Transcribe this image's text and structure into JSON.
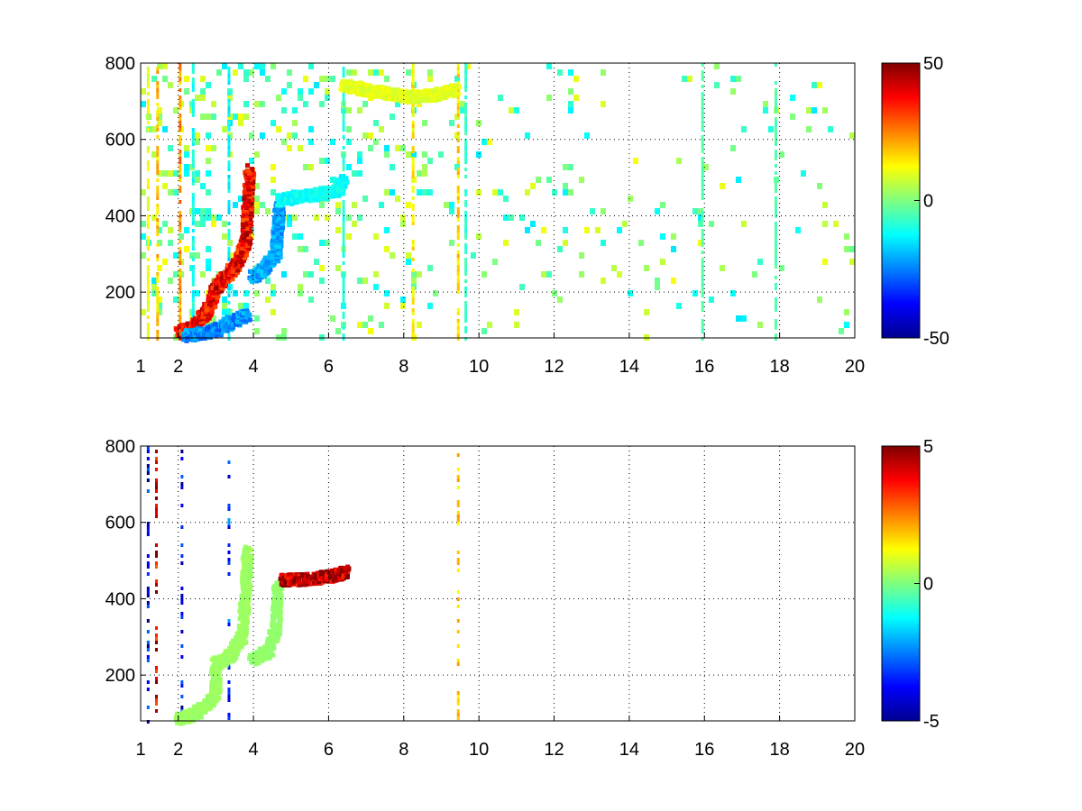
{
  "chart_data": [
    {
      "type": "heatmap",
      "title": "",
      "xlabel": "",
      "ylabel": "",
      "xlim": [
        1,
        20
      ],
      "ylim": [
        80,
        800
      ],
      "xticks": [
        1,
        2,
        4,
        6,
        8,
        10,
        12,
        14,
        16,
        18,
        20
      ],
      "xtick_labels": [
        "1",
        "2",
        "4",
        "6",
        "8",
        "10",
        "12",
        "14",
        "16",
        "18",
        "20"
      ],
      "yticks": [
        200,
        400,
        600,
        800
      ],
      "ytick_labels": [
        "200",
        "400",
        "600",
        "800"
      ],
      "grid": true,
      "colormap": "jet",
      "colorbar": {
        "limits": [
          -50,
          50
        ],
        "ticks": [
          -50,
          0,
          50
        ],
        "tick_labels": [
          "-50",
          "0",
          "50"
        ]
      },
      "features": [
        {
          "kind": "curve",
          "points": [
            [
              2.0,
              90
            ],
            [
              2.4,
              110
            ],
            [
              2.8,
              150
            ],
            [
              3.0,
              210
            ],
            [
              3.3,
              240
            ],
            [
              3.6,
              280
            ],
            [
              3.8,
              330
            ],
            [
              3.85,
              420
            ],
            [
              3.9,
              520
            ]
          ],
          "value": 40
        },
        {
          "kind": "curve",
          "points": [
            [
              2.2,
              85
            ],
            [
              2.6,
              90
            ],
            [
              3.0,
              100
            ],
            [
              3.4,
              120
            ],
            [
              3.8,
              140
            ]
          ],
          "value": -25
        },
        {
          "kind": "curve",
          "points": [
            [
              4.0,
              240
            ],
            [
              4.3,
              260
            ],
            [
              4.6,
              300
            ],
            [
              4.65,
              360
            ],
            [
              4.7,
              430
            ]
          ],
          "value": -22
        },
        {
          "kind": "curve",
          "points": [
            [
              4.7,
              440
            ],
            [
              5.2,
              450
            ],
            [
              5.7,
              455
            ],
            [
              6.2,
              465
            ],
            [
              6.4,
              490
            ]
          ],
          "value": -12
        },
        {
          "kind": "curve",
          "points": [
            [
              6.4,
              740
            ],
            [
              7.0,
              730
            ],
            [
              7.6,
              720
            ],
            [
              8.2,
              710
            ],
            [
              8.8,
              715
            ],
            [
              9.4,
              730
            ]
          ],
          "value": 10
        },
        {
          "kind": "column",
          "x": 1.2,
          "value": 12
        },
        {
          "kind": "column",
          "x": 1.45,
          "value": 20
        },
        {
          "kind": "column",
          "x": 2.05,
          "value": 25
        },
        {
          "kind": "column",
          "x": 2.4,
          "value": -12
        },
        {
          "kind": "column",
          "x": 3.35,
          "value": -15
        },
        {
          "kind": "column",
          "x": 6.4,
          "value": -10
        },
        {
          "kind": "column",
          "x": 8.25,
          "value": 15
        },
        {
          "kind": "column",
          "x": 9.45,
          "value": 18
        },
        {
          "kind": "column",
          "x": 9.65,
          "value": -8
        },
        {
          "kind": "column",
          "x": 15.95,
          "value": -5
        },
        {
          "kind": "column",
          "x": 17.9,
          "value": -5
        }
      ],
      "scatter_density": [
        [
          1,
          0.5
        ],
        [
          4,
          0.45
        ],
        [
          7,
          0.35
        ],
        [
          10,
          0.22
        ],
        [
          14,
          0.14
        ],
        [
          20,
          0.12
        ]
      ],
      "scatter_value_range": [
        -15,
        12
      ]
    },
    {
      "type": "heatmap",
      "title": "",
      "xlabel": "",
      "ylabel": "",
      "xlim": [
        1,
        20
      ],
      "ylim": [
        80,
        800
      ],
      "xticks": [
        1,
        2,
        4,
        6,
        8,
        10,
        12,
        14,
        16,
        18,
        20
      ],
      "xtick_labels": [
        "1",
        "2",
        "4",
        "6",
        "8",
        "10",
        "12",
        "14",
        "16",
        "18",
        "20"
      ],
      "yticks": [
        200,
        400,
        600,
        800
      ],
      "ytick_labels": [
        "200",
        "400",
        "600",
        "800"
      ],
      "grid": true,
      "colormap": "jet",
      "colorbar": {
        "limits": [
          -5,
          5
        ],
        "ticks": [
          -5,
          0,
          5
        ],
        "tick_labels": [
          "-5",
          "0",
          "5"
        ]
      },
      "features": [
        {
          "kind": "curve",
          "points": [
            [
              2.0,
              85
            ],
            [
              2.5,
              100
            ],
            [
              3.0,
              150
            ],
            [
              3.0,
              230
            ],
            [
              3.4,
              250
            ],
            [
              3.7,
              300
            ],
            [
              3.8,
              420
            ],
            [
              3.85,
              530
            ]
          ],
          "value": 0.3
        },
        {
          "kind": "curve",
          "points": [
            [
              4.0,
              240
            ],
            [
              4.4,
              260
            ],
            [
              4.6,
              320
            ],
            [
              4.65,
              440
            ]
          ],
          "value": 0.2
        },
        {
          "kind": "curve",
          "points": [
            [
              4.8,
              448
            ],
            [
              5.3,
              450
            ],
            [
              5.8,
              455
            ],
            [
              6.2,
              460
            ],
            [
              6.45,
              470
            ]
          ],
          "value": 4.6
        },
        {
          "kind": "column",
          "x": 1.2,
          "value": -4.5
        },
        {
          "kind": "column",
          "x": 1.42,
          "value": 4.8
        },
        {
          "kind": "column",
          "x": 2.1,
          "value": -4.2
        },
        {
          "kind": "column",
          "x": 3.35,
          "value": -3.5
        },
        {
          "kind": "column",
          "x": 9.45,
          "value": 2.0
        }
      ],
      "scatter_density": [
        [
          1,
          0.0
        ],
        [
          20,
          0.0
        ]
      ],
      "scatter_value_range": [
        -1,
        1
      ]
    }
  ]
}
